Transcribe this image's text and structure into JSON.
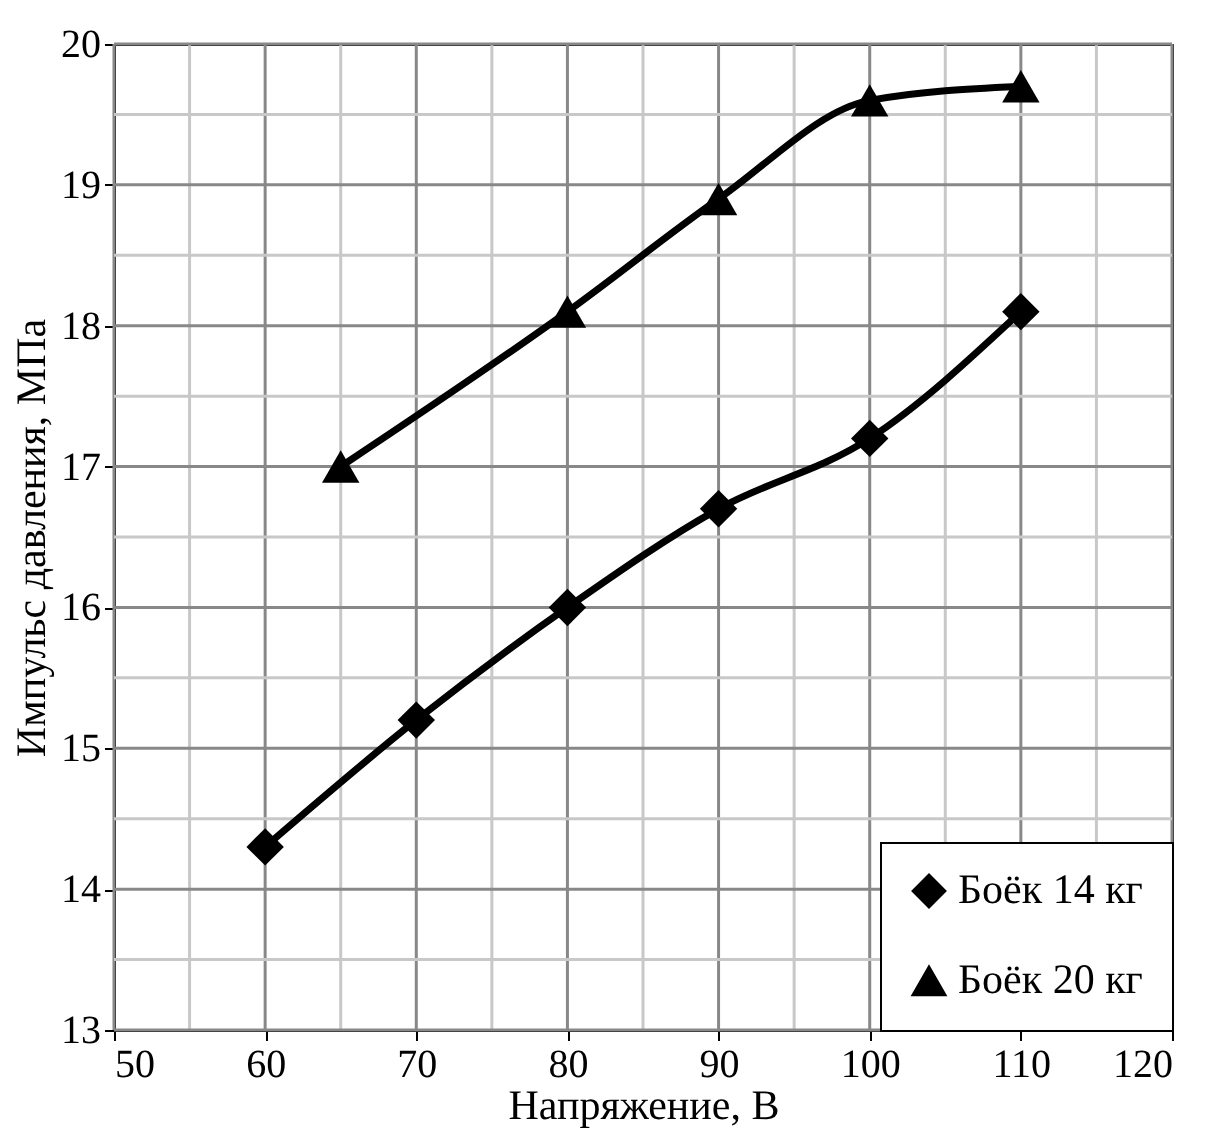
{
  "chart_data": {
    "type": "line",
    "xlabel": "Напряжение, В",
    "ylabel": "Импульс давления, МПа",
    "xlim": [
      50,
      120
    ],
    "ylim": [
      13,
      20
    ],
    "xticks": [
      50,
      {
        "value": 55,
        "label": null
      },
      60,
      {
        "value": 65,
        "label": null
      },
      70,
      {
        "value": 75,
        "label": null
      },
      80,
      {
        "value": 85,
        "label": null
      },
      90,
      {
        "value": 95,
        "label": null
      },
      100,
      {
        "value": 105,
        "label": null
      },
      110,
      {
        "value": 115,
        "label": null
      },
      120
    ],
    "yticks": [
      13,
      {
        "value": 13.5,
        "label": null
      },
      14,
      {
        "value": 14.5,
        "label": null
      },
      15,
      {
        "value": 15.5,
        "label": null
      },
      16,
      {
        "value": 16.5,
        "label": null
      },
      17,
      {
        "value": 17.5,
        "label": null
      },
      18,
      {
        "value": 18.5,
        "label": null
      },
      19,
      {
        "value": 19.5,
        "label": null
      },
      20
    ],
    "grid": true,
    "legend": "bottom right",
    "line_style": "solid",
    "series": [
      {
        "name": "Боёк 14 кг",
        "color": "#000000",
        "marker": "diamond",
        "x": [
          60,
          70,
          80,
          90,
          100,
          110
        ],
        "values": [
          14.3,
          15.2,
          16.0,
          16.7,
          17.2,
          18.1
        ]
      },
      {
        "name": "Боёк 20 кг",
        "color": "#000000",
        "marker": "triangle",
        "x": [
          65,
          80,
          90,
          100,
          110
        ],
        "values": [
          17.0,
          18.1,
          18.9,
          19.6,
          19.7
        ]
      }
    ]
  }
}
